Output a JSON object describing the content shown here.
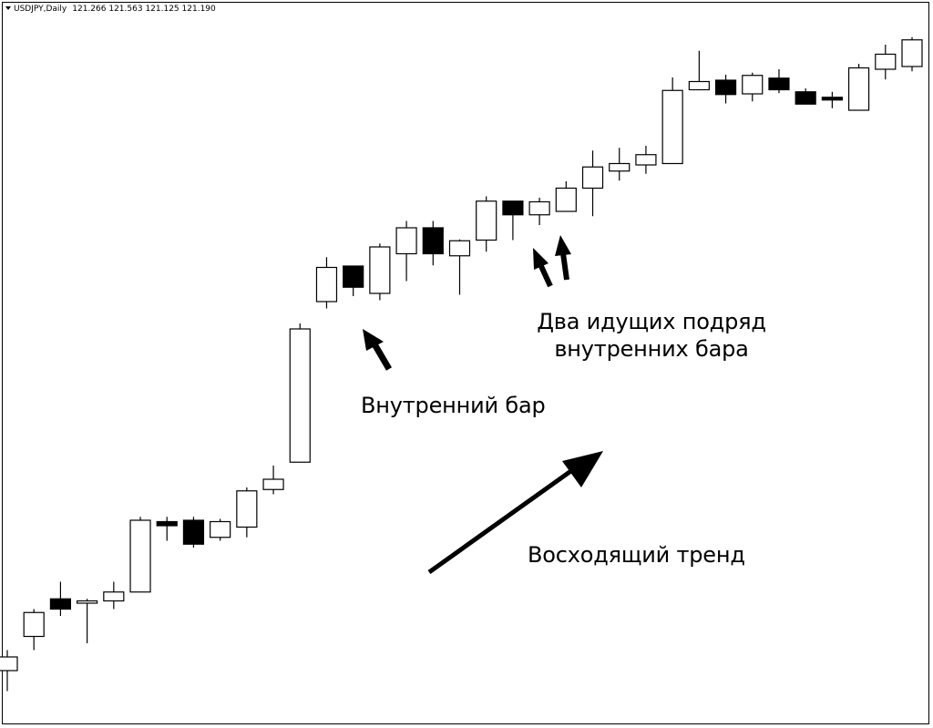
{
  "header": {
    "symbol": "USDJPY,Daily",
    "open": "121.266",
    "high": "121.563",
    "low": "121.125",
    "close": "121.190"
  },
  "annotations": {
    "inside_bar": "Внутренний бар",
    "two_inside_bars_line1": "Два идущих подряд",
    "two_inside_bars_line2": "внутренних бара",
    "uptrend": "Восходящий тренд"
  },
  "colors": {
    "bullish": "#ffffff",
    "bearish": "#000000",
    "outline": "#000000"
  },
  "chart_data": {
    "type": "candlestick",
    "title": "USDJPY,Daily",
    "xlabel": "",
    "ylabel": "",
    "ylim": [
      0,
      1000
    ],
    "grid": false,
    "candles": [
      {
        "o": 60,
        "h": 90,
        "l": 30,
        "c": 80
      },
      {
        "o": 110,
        "h": 150,
        "l": 90,
        "c": 145
      },
      {
        "o": 165,
        "h": 190,
        "l": 140,
        "c": 150
      },
      {
        "o": 160,
        "h": 165,
        "l": 100,
        "c": 162
      },
      {
        "o": 162,
        "h": 190,
        "l": 150,
        "c": 175
      },
      {
        "o": 175,
        "h": 285,
        "l": 175,
        "c": 280
      },
      {
        "o": 278,
        "h": 285,
        "l": 250,
        "c": 272
      },
      {
        "o": 280,
        "h": 285,
        "l": 240,
        "c": 245
      },
      {
        "o": 255,
        "h": 282,
        "l": 250,
        "c": 278
      },
      {
        "o": 270,
        "h": 328,
        "l": 255,
        "c": 323
      },
      {
        "o": 325,
        "h": 360,
        "l": 318,
        "c": 340
      },
      {
        "o": 365,
        "h": 568,
        "l": 365,
        "c": 560
      },
      {
        "o": 600,
        "h": 665,
        "l": 590,
        "c": 650
      },
      {
        "o": 652,
        "h": 652,
        "l": 608,
        "c": 621
      },
      {
        "o": 612,
        "h": 685,
        "l": 602,
        "c": 680
      },
      {
        "o": 670,
        "h": 718,
        "l": 630,
        "c": 708
      },
      {
        "o": 708,
        "h": 718,
        "l": 653,
        "c": 670
      },
      {
        "o": 667,
        "h": 691,
        "l": 610,
        "c": 689
      },
      {
        "o": 690,
        "h": 754,
        "l": 673,
        "c": 747
      },
      {
        "o": 747,
        "h": 747,
        "l": 690,
        "c": 727
      },
      {
        "o": 727,
        "h": 752,
        "l": 712,
        "c": 746
      },
      {
        "o": 732,
        "h": 776,
        "l": 732,
        "c": 766
      },
      {
        "o": 766,
        "h": 821,
        "l": 725,
        "c": 797
      },
      {
        "o": 791,
        "h": 825,
        "l": 777,
        "c": 802
      },
      {
        "o": 800,
        "h": 828,
        "l": 787,
        "c": 815
      },
      {
        "o": 802,
        "h": 928,
        "l": 802,
        "c": 909
      },
      {
        "o": 910,
        "h": 967,
        "l": 910,
        "c": 922
      },
      {
        "o": 924,
        "h": 932,
        "l": 890,
        "c": 903
      },
      {
        "o": 904,
        "h": 935,
        "l": 893,
        "c": 931
      },
      {
        "o": 927,
        "h": 940,
        "l": 905,
        "c": 910
      },
      {
        "o": 907,
        "h": 912,
        "l": 890,
        "c": 889
      },
      {
        "o": 899,
        "h": 907,
        "l": 883,
        "c": 895
      },
      {
        "o": 880,
        "h": 948,
        "l": 880,
        "c": 942
      },
      {
        "o": 940,
        "h": 976,
        "l": 925,
        "c": 962
      },
      {
        "o": 944,
        "h": 987,
        "l": 937,
        "c": 983
      }
    ]
  }
}
